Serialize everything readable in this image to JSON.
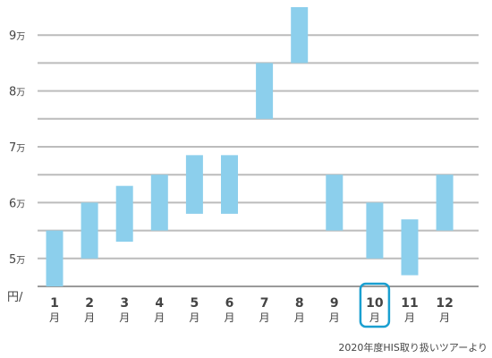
{
  "chart_data": {
    "type": "bar",
    "subtype": "floating-range",
    "categories": [
      "1",
      "2",
      "3",
      "4",
      "5",
      "6",
      "7",
      "8",
      "9",
      "10",
      "11",
      "12"
    ],
    "category_unit": "月",
    "ranges": [
      [
        45000,
        55000
      ],
      [
        50000,
        60000
      ],
      [
        53000,
        63000
      ],
      [
        55000,
        65000
      ],
      [
        58000,
        68500
      ],
      [
        58000,
        68500
      ],
      [
        75000,
        85000
      ],
      [
        85000,
        95000
      ],
      [
        55000,
        65000
      ],
      [
        50000,
        60000
      ],
      [
        47000,
        57000
      ],
      [
        55000,
        65000
      ]
    ],
    "y_ticks": [
      {
        "value": 50000,
        "num": "5",
        "unit": "万"
      },
      {
        "value": 60000,
        "num": "6",
        "unit": "万"
      },
      {
        "value": 70000,
        "num": "7",
        "unit": "万"
      },
      {
        "value": 80000,
        "num": "8",
        "unit": "万"
      },
      {
        "value": 90000,
        "num": "9",
        "unit": "万"
      }
    ],
    "ylim": [
      45000,
      95000
    ],
    "ylabel": "円/",
    "highlight_category": "10",
    "grid": true,
    "bar_color": "#8ccfec",
    "highlight_color": "#1a9fd0"
  },
  "source_note": "2020年度HIS取り扱いツアーより"
}
